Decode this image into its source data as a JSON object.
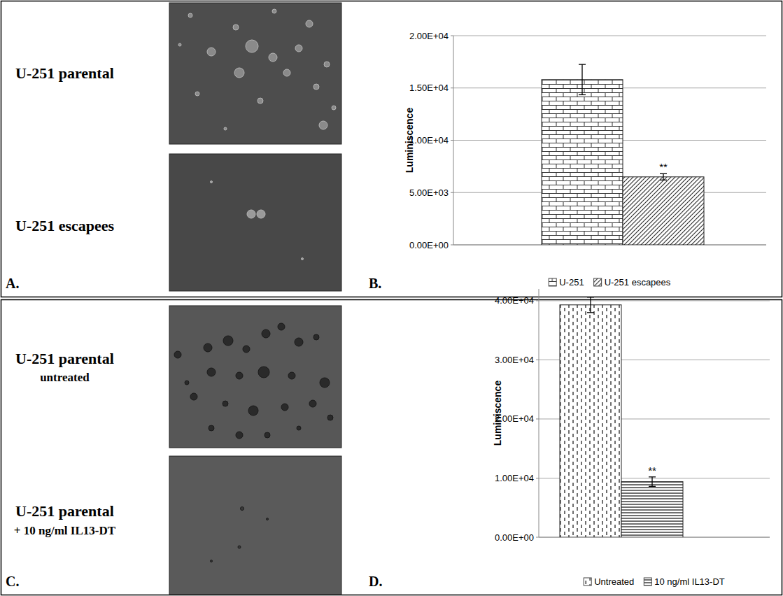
{
  "figure": {
    "image_panels": [
      {
        "panel_label": "A.",
        "images": [
          {
            "label": "U-251 parental"
          },
          {
            "label": "U-251 escapees"
          }
        ]
      },
      {
        "panel_label": "C.",
        "images": [
          {
            "label": "U-251 parental",
            "sublabel": "untreated"
          },
          {
            "label": "U-251 parental",
            "sublabel": "+ 10 ng/ml IL13-DT"
          }
        ]
      }
    ]
  },
  "chart_data": [
    {
      "type": "bar",
      "panel_label": "B.",
      "y_label": "Luminiscence",
      "categories": [
        null
      ],
      "series": [
        {
          "name": "U-251",
          "color": "#ffffff",
          "values": [
            15800
          ],
          "errors": [
            1450
          ]
        },
        {
          "name": "U-251 escapees",
          "color": "#ffffff",
          "values": [
            6500
          ],
          "errors": [
            300
          ],
          "annotation": "**"
        }
      ],
      "ylim": [
        0,
        20000
      ],
      "yticks": [
        {
          "value": 0,
          "label": "0.00E+00"
        },
        {
          "value": 5000,
          "label": "5.00E+03"
        },
        {
          "value": 10000,
          "label": "1.00E+04"
        },
        {
          "value": 15000,
          "label": "1.50E+04"
        },
        {
          "value": 20000,
          "label": "2.00E+04"
        }
      ],
      "grid": true,
      "legend": "bottom"
    },
    {
      "type": "bar",
      "panel_label": "D.",
      "y_label": "Luminiscence",
      "categories": [
        null
      ],
      "series": [
        {
          "name": "Untreated",
          "color": "#ffffff",
          "values": [
            39300
          ],
          "errors": [
            1300
          ]
        },
        {
          "name": "10 ng/ml IL13-DT",
          "color": "#ffffff",
          "values": [
            9400
          ],
          "errors": [
            800
          ],
          "annotation": "**"
        }
      ],
      "ylim": [
        0,
        42000
      ],
      "yticks": [
        {
          "value": 0,
          "label": "0.00E+00"
        },
        {
          "value": 10000,
          "label": "1.00E+04"
        },
        {
          "value": 20000,
          "label": "2.00E+04"
        },
        {
          "value": 30000,
          "label": "3.00E+04"
        },
        {
          "value": 40000,
          "label": "4.00E+04"
        }
      ],
      "grid": true,
      "legend": "bottom"
    }
  ]
}
